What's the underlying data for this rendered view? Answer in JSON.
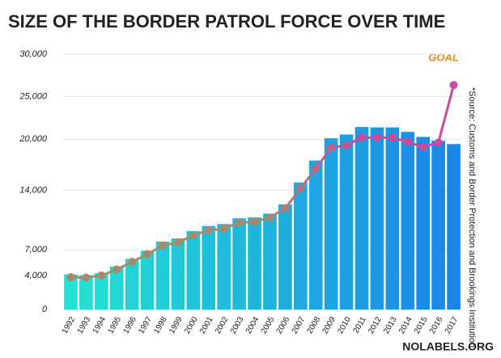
{
  "chart_data": {
    "type": "bar",
    "title": "SIZE OF THE BORDER PATROL FORCE OVER TIME",
    "annotation": "GOAL",
    "source": "*Source: Customs and Border Protection and Brookings Institution",
    "footer": "NOLABELS.ORG",
    "categories": [
      "1992",
      "1993",
      "1994",
      "1995",
      "1996",
      "1997",
      "1998",
      "1999",
      "2000",
      "2001",
      "2002",
      "2003",
      "2004",
      "2005",
      "2006",
      "2007",
      "2008",
      "2009",
      "2010",
      "2011",
      "2012",
      "2013",
      "2014",
      "2015",
      "2016",
      "2017"
    ],
    "series": [
      {
        "type": "bar",
        "colors": [
          "#22e2d2",
          "#1a86e8"
        ],
        "values": [
          4139,
          4028,
          4287,
          5042,
          5942,
          6895,
          7982,
          8351,
          9212,
          9821,
          10045,
          10717,
          10819,
          11264,
          12349,
          14923,
          17499,
          20119,
          20558,
          21444,
          21394,
          21391,
          20863,
          20273,
          19828,
          19437
        ]
      },
      {
        "type": "line",
        "colors": [
          "#a88a6a",
          "#cc4a9c"
        ],
        "values": [
          3800,
          3750,
          4000,
          4700,
          5600,
          6500,
          7500,
          7900,
          8700,
          9300,
          9500,
          10200,
          10300,
          10800,
          11900,
          14200,
          16600,
          19000,
          19300,
          20200,
          20200,
          20200,
          19700,
          19100,
          19600,
          26370
        ]
      }
    ],
    "ylim": [
      0,
      30000
    ],
    "yticks": [
      0,
      {
        "value": 4000,
        "label": "4,000"
      },
      {
        "value": 7000,
        "label": "7,000"
      },
      {
        "value": 14000,
        "label": "14,000"
      },
      {
        "value": 20000,
        "label": "20,000"
      },
      {
        "value": 25000,
        "label": "25,000"
      },
      {
        "value": 30000,
        "label": "30,000"
      }
    ],
    "grid": true
  }
}
